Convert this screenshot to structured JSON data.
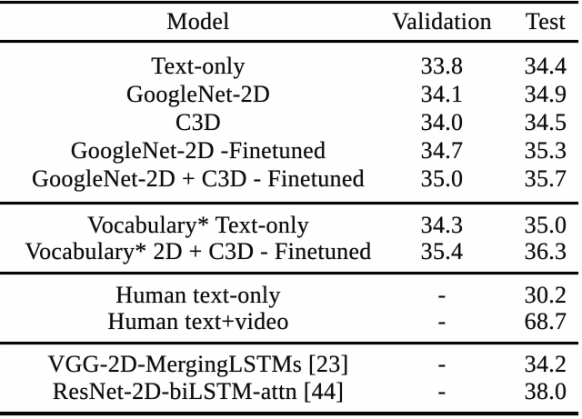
{
  "style": {
    "ink_color": "#0d0d0d",
    "rule_color": "#060606",
    "background": "#fefefe"
  },
  "table": {
    "header": {
      "model": "Model",
      "validation": "Validation",
      "test": "Test"
    },
    "sections": [
      {
        "name": "base-models",
        "rows": [
          {
            "model": "Text-only",
            "validation": "33.8",
            "test": "34.4"
          },
          {
            "model": "GoogleNet-2D",
            "validation": "34.1",
            "test": "34.9"
          },
          {
            "model": "C3D",
            "validation": "34.0",
            "test": "34.5"
          },
          {
            "model": "GoogleNet-2D -Finetuned",
            "validation": "34.7",
            "test": "35.3"
          },
          {
            "model": "GoogleNet-2D + C3D - Finetuned",
            "validation": "35.0",
            "test": "35.7"
          }
        ]
      },
      {
        "name": "vocabulary-models",
        "rows": [
          {
            "model": "Vocabulary* Text-only",
            "validation": "34.3",
            "test": "35.0"
          },
          {
            "model": "Vocabulary* 2D + C3D - Finetuned",
            "validation": "35.4",
            "test": "36.3"
          }
        ]
      },
      {
        "name": "human-baselines",
        "rows": [
          {
            "model": "Human text-only",
            "validation": "-",
            "test": "30.2"
          },
          {
            "model": "Human text+video",
            "validation": "-",
            "test": "68.7"
          }
        ]
      },
      {
        "name": "prior-work",
        "rows": [
          {
            "model": "VGG-2D-MergingLSTMs [23]",
            "validation": "-",
            "test": "34.2"
          },
          {
            "model": "ResNet-2D-biLSTM-attn [44]",
            "validation": "-",
            "test": "38.0"
          }
        ]
      }
    ]
  }
}
